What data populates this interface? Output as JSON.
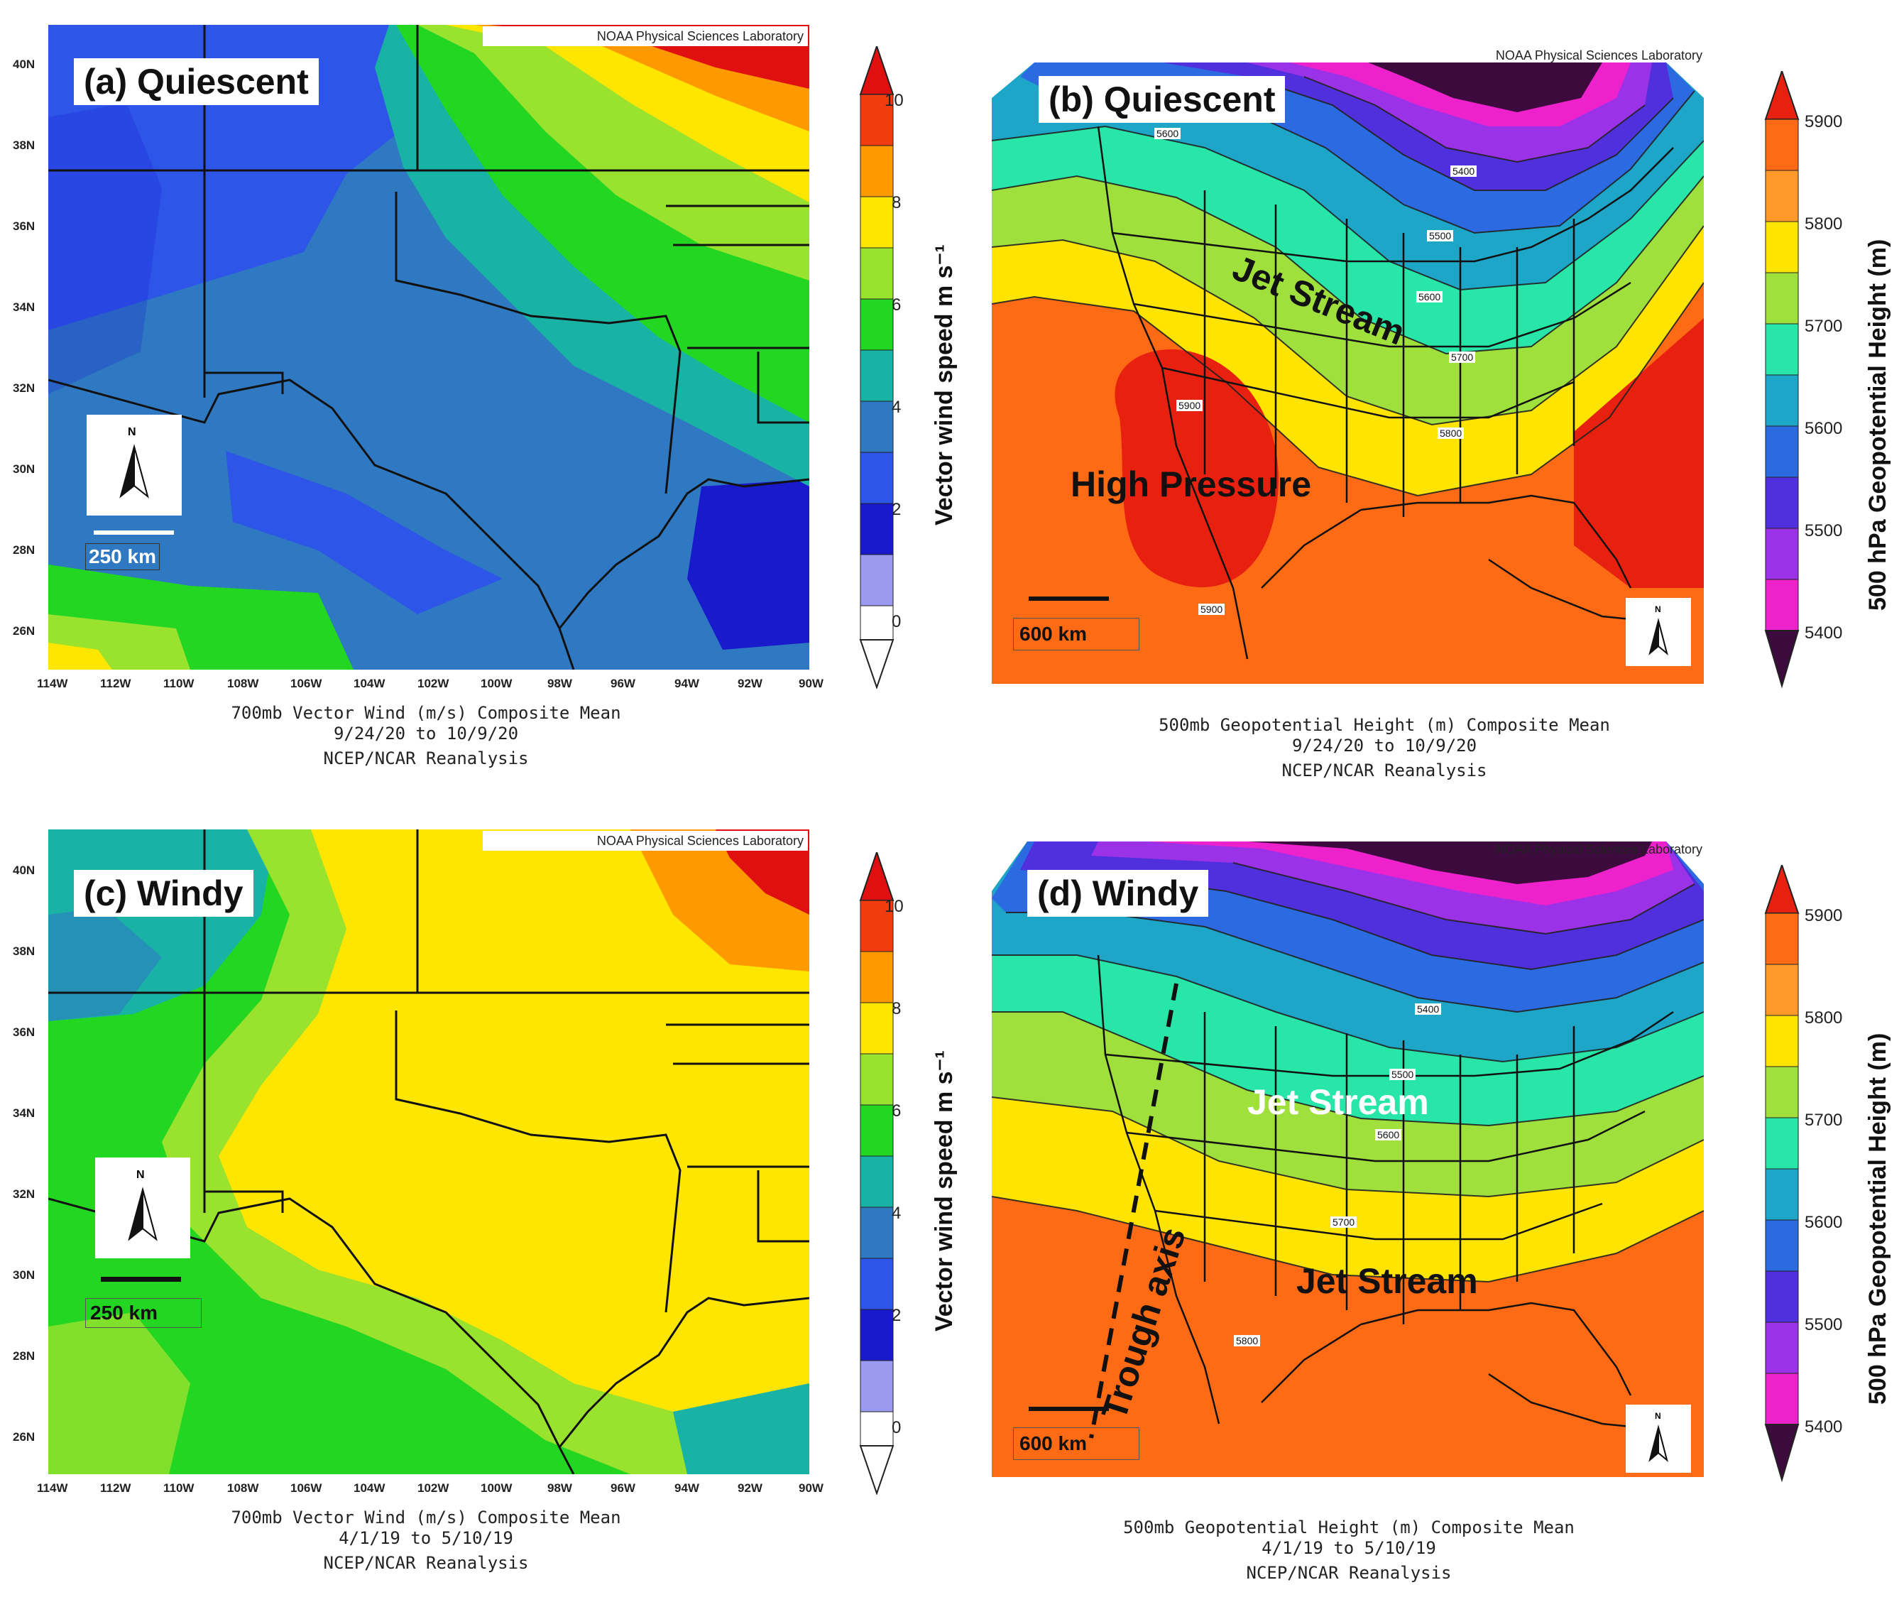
{
  "source_label": "NOAA Physical Sciences Laboratory",
  "panels": {
    "a": {
      "label": "(a) Quiescent",
      "caption_line1": "700mb Vector Wind (m/s) Composite Mean",
      "caption_line2": "9/24/20  to 10/9/20",
      "caption_line3": "NCEP/NCAR Reanalysis",
      "scale_label": "250 km"
    },
    "b": {
      "label": "(b) Quiescent",
      "caption_line1": "500mb Geopotential Height (m) Composite Mean",
      "caption_line2": "9/24/20  to 10/9/20",
      "caption_line3": "NCEP/NCAR Reanalysis",
      "scale_label": "600 km",
      "annotations": [
        "Jet Stream",
        "High Pressure"
      ],
      "contour_labels": [
        "5400",
        "5500",
        "5600",
        "5600",
        "5700",
        "5800",
        "5900",
        "5900"
      ]
    },
    "c": {
      "label": "(c) Windy",
      "caption_line1": "700mb Vector Wind (m/s) Composite Mean",
      "caption_line2": "4/1/19  to 5/10/19",
      "caption_line3": "NCEP/NCAR Reanalysis",
      "scale_label": "250 km"
    },
    "d": {
      "label": "(d) Windy",
      "caption_line1": "500mb Geopotential Height (m) Composite Mean",
      "caption_line2": "4/1/19  to 5/10/19",
      "caption_line3": "NCEP/NCAR Reanalysis",
      "scale_label": "600 km",
      "annotations": [
        "Jet Stream",
        "Jet Stream",
        "Trough axis"
      ],
      "contour_labels": [
        "5400",
        "5500",
        "5600",
        "5700",
        "5800"
      ]
    }
  },
  "compass_letter": "N",
  "x_ticks": [
    "114W",
    "112W",
    "110W",
    "108W",
    "106W",
    "104W",
    "102W",
    "100W",
    "98W",
    "96W",
    "94W",
    "92W",
    "90W"
  ],
  "y_ticks": [
    "40N",
    "38N",
    "36N",
    "34N",
    "32N",
    "30N",
    "28N",
    "26N"
  ],
  "wind_colorbar": {
    "title": "Vector wind speed m s⁻¹",
    "ticks": [
      "10",
      "8",
      "6",
      "4",
      "2",
      "0"
    ],
    "colors": [
      "#ffffff",
      "#9a9af0",
      "#1a1acd",
      "#2d55e8",
      "#2f79c2",
      "#19b3a6",
      "#22d622",
      "#99e22e",
      "#ffe600",
      "#ff9900",
      "#f23b0e",
      "#e01010"
    ]
  },
  "height_colorbar": {
    "title": "500 hPa Geopotential Height (m)",
    "ticks": [
      "5900",
      "5800",
      "5700",
      "5600",
      "5500",
      "5400"
    ],
    "colors": [
      "#3d0a3d",
      "#ee22cc",
      "#9b32e8",
      "#5030dd",
      "#2b6ae0",
      "#1da6c8",
      "#27e6a8",
      "#9fe03c",
      "#ffe400",
      "#ff9a2a",
      "#ff6a14",
      "#e8200f"
    ]
  }
}
